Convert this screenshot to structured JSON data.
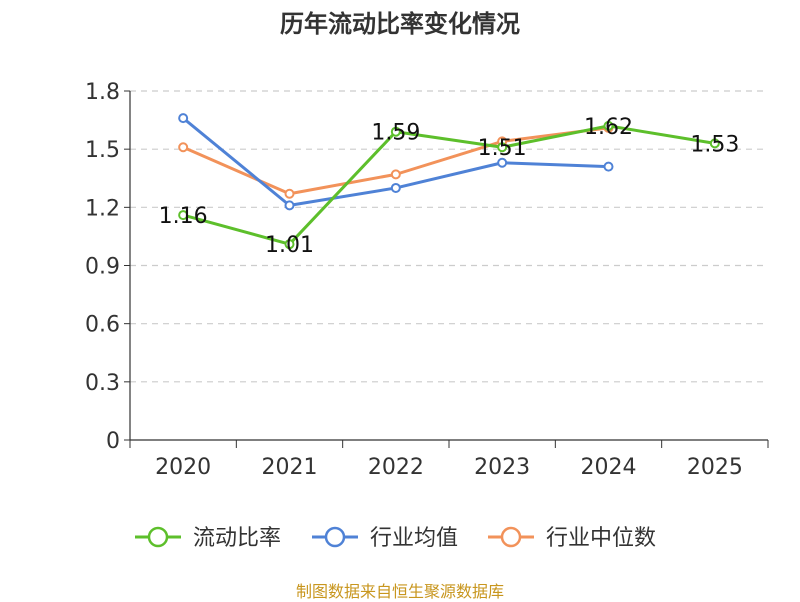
{
  "chart_data": {
    "type": "line",
    "title": "历年流动比率变化情况",
    "categories": [
      "2020",
      "2021",
      "2022",
      "2023",
      "2024",
      "2025"
    ],
    "y_ticks": [
      "0",
      "0.3",
      "0.6",
      "0.9",
      "1.2",
      "1.5",
      "1.8"
    ],
    "ylim": [
      0,
      1.8
    ],
    "grid": true,
    "legend_position": "bottom",
    "series": [
      {
        "name": "流动比率",
        "color": "#5dbf2b",
        "show_labels": true,
        "values": [
          1.16,
          1.01,
          1.59,
          1.51,
          1.62,
          1.53
        ],
        "labels": [
          "1.16",
          "1.01",
          "1.59",
          "1.51",
          "1.62",
          "1.53"
        ]
      },
      {
        "name": "行业均值",
        "color": "#4f82d6",
        "show_labels": false,
        "values": [
          1.66,
          1.21,
          1.3,
          1.43,
          1.41,
          null
        ]
      },
      {
        "name": "行业中位数",
        "color": "#f2925a",
        "show_labels": false,
        "values": [
          1.51,
          1.27,
          1.37,
          1.54,
          1.61,
          null
        ]
      }
    ]
  },
  "source": "制图数据来自恒生聚源数据库"
}
